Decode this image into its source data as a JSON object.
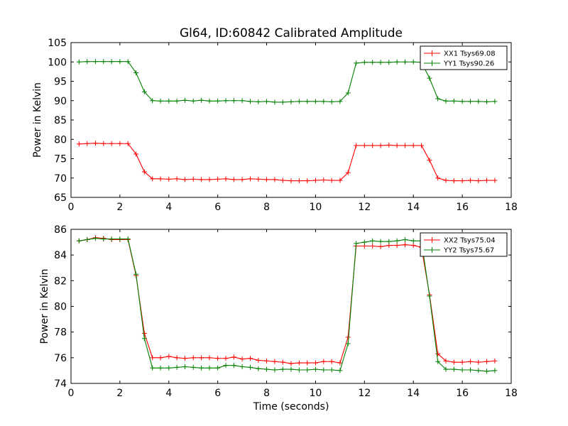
{
  "chart_data": [
    {
      "type": "line",
      "title": "Gl64, ID:60842 Calibrated Amplitude",
      "xlabel": "",
      "ylabel": "Power in Kelvin",
      "xlim": [
        0,
        18
      ],
      "ylim": [
        65,
        105
      ],
      "xticks": [
        0,
        2,
        4,
        6,
        8,
        10,
        12,
        14,
        16,
        18
      ],
      "yticks": [
        65,
        70,
        75,
        80,
        85,
        90,
        95,
        100,
        105
      ],
      "legend_position": "top-right",
      "x": [
        0.33,
        0.66,
        1.0,
        1.33,
        1.66,
        2.0,
        2.33,
        2.66,
        3.0,
        3.33,
        3.66,
        4.0,
        4.33,
        4.66,
        5.0,
        5.33,
        5.66,
        6.0,
        6.33,
        6.66,
        7.0,
        7.33,
        7.66,
        8.0,
        8.33,
        8.66,
        9.0,
        9.33,
        9.66,
        10.0,
        10.33,
        10.66,
        11.0,
        11.33,
        11.66,
        12.0,
        12.33,
        12.66,
        13.0,
        13.33,
        13.66,
        14.0,
        14.33,
        14.66,
        15.0,
        15.33,
        15.66,
        16.0,
        16.33,
        16.66,
        17.0,
        17.33
      ],
      "series": [
        {
          "name": "XX1 Tsys69.08",
          "color": "#ff0000",
          "values": [
            78.8,
            78.9,
            79.0,
            78.9,
            78.9,
            78.9,
            78.9,
            76.2,
            71.6,
            69.8,
            69.8,
            69.7,
            69.8,
            69.6,
            69.7,
            69.6,
            69.6,
            69.7,
            69.8,
            69.6,
            69.6,
            69.8,
            69.7,
            69.6,
            69.6,
            69.4,
            69.3,
            69.3,
            69.3,
            69.4,
            69.5,
            69.4,
            69.4,
            71.4,
            78.4,
            78.4,
            78.4,
            78.4,
            78.5,
            78.4,
            78.4,
            78.4,
            78.4,
            74.6,
            70.0,
            69.4,
            69.3,
            69.3,
            69.4,
            69.3,
            69.4,
            69.4
          ]
        },
        {
          "name": "YY1 Tsys90.26",
          "color": "#008000",
          "values": [
            100.0,
            100.1,
            100.1,
            100.1,
            100.1,
            100.1,
            100.1,
            97.2,
            92.3,
            90.0,
            89.9,
            89.9,
            89.9,
            90.1,
            89.9,
            90.1,
            89.9,
            89.9,
            90.0,
            90.0,
            90.0,
            89.8,
            89.7,
            89.8,
            89.6,
            89.6,
            89.7,
            89.8,
            89.8,
            89.8,
            89.8,
            89.7,
            89.8,
            92.0,
            99.7,
            99.9,
            99.9,
            99.9,
            99.9,
            100.0,
            100.0,
            100.0,
            99.9,
            95.8,
            90.5,
            89.9,
            89.9,
            89.8,
            89.8,
            89.8,
            89.7,
            89.8
          ]
        }
      ]
    },
    {
      "type": "line",
      "title": "",
      "xlabel": "Time (seconds)",
      "ylabel": "Power in Kelvin",
      "xlim": [
        0,
        18
      ],
      "ylim": [
        74,
        86
      ],
      "xticks": [
        0,
        2,
        4,
        6,
        8,
        10,
        12,
        14,
        16,
        18
      ],
      "yticks": [
        74,
        76,
        78,
        80,
        82,
        84,
        86
      ],
      "legend_position": "top-right",
      "x": [
        0.33,
        0.66,
        1.0,
        1.33,
        1.66,
        2.0,
        2.33,
        2.66,
        3.0,
        3.33,
        3.66,
        4.0,
        4.33,
        4.66,
        5.0,
        5.33,
        5.66,
        6.0,
        6.33,
        6.66,
        7.0,
        7.33,
        7.66,
        8.0,
        8.33,
        8.66,
        9.0,
        9.33,
        9.66,
        10.0,
        10.33,
        10.66,
        11.0,
        11.33,
        11.66,
        12.0,
        12.33,
        12.66,
        13.0,
        13.33,
        13.66,
        14.0,
        14.33,
        14.66,
        15.0,
        15.33,
        15.66,
        16.0,
        16.33,
        16.66,
        17.0,
        17.33
      ],
      "series": [
        {
          "name": "XX2 Tsys75.04",
          "color": "#ff0000",
          "values": [
            85.1,
            85.2,
            85.35,
            85.3,
            85.2,
            85.2,
            85.2,
            82.4,
            77.9,
            76.0,
            76.0,
            76.1,
            76.0,
            75.95,
            76.0,
            76.0,
            76.0,
            75.95,
            75.95,
            76.05,
            75.9,
            75.95,
            75.8,
            75.75,
            75.7,
            75.65,
            75.55,
            75.6,
            75.6,
            75.6,
            75.7,
            75.7,
            75.6,
            77.6,
            84.7,
            84.7,
            84.7,
            84.65,
            84.75,
            84.75,
            84.8,
            84.75,
            84.6,
            80.9,
            76.3,
            75.75,
            75.65,
            75.65,
            75.7,
            75.65,
            75.7,
            75.75
          ]
        },
        {
          "name": "YY2 Tsys75.67",
          "color": "#008000",
          "values": [
            85.1,
            85.2,
            85.3,
            85.25,
            85.25,
            85.25,
            85.25,
            82.5,
            77.5,
            75.2,
            75.2,
            75.2,
            75.25,
            75.3,
            75.25,
            75.2,
            75.2,
            75.2,
            75.4,
            75.4,
            75.3,
            75.25,
            75.15,
            75.1,
            75.05,
            75.1,
            75.1,
            75.05,
            75.05,
            75.1,
            75.05,
            75.05,
            75.0,
            77.1,
            84.9,
            85.0,
            85.1,
            85.05,
            85.05,
            85.1,
            85.2,
            85.1,
            85.1,
            80.8,
            75.7,
            75.1,
            75.1,
            75.05,
            75.05,
            75.0,
            74.95,
            75.0
          ]
        }
      ]
    }
  ]
}
